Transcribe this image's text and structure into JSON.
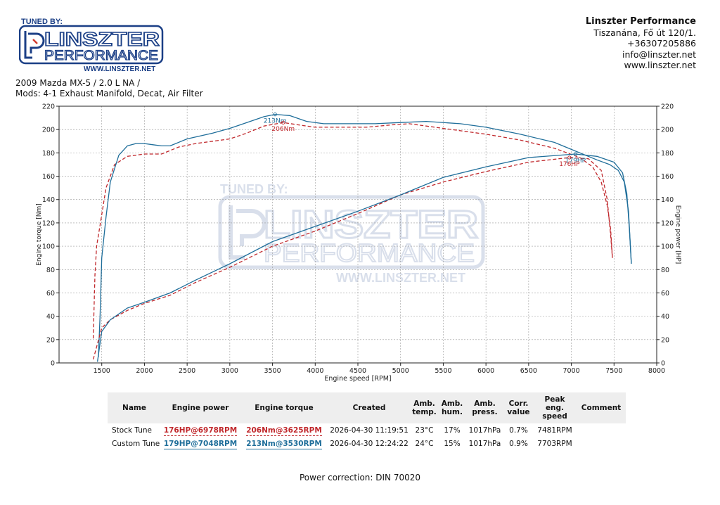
{
  "header": {
    "logo": {
      "tuned_by": "TUNED BY:",
      "line1": "LINSZTER",
      "line2": "PERFORMANCE",
      "url": "WWW.LINSZTER.NET"
    },
    "company": {
      "name": "Linszter Performance",
      "address": "Tiszanána, Fő út 120/1.",
      "phone": "+36307205886",
      "email": "info@linszter.net",
      "website": "www.linszter.net"
    },
    "vehicle": {
      "title": "2009 Mazda MX-5 / 2.0 L NA /",
      "mods": "Mods: 4-1 Exhaust Manifold, Decat, Air Filter"
    }
  },
  "chart_data": {
    "type": "line",
    "xlabel": "Engine speed [RPM]",
    "ylabel_left": "Engine torque [Nm]",
    "ylabel_right": "Engine power [HP]",
    "xlim": [
      1000,
      8000
    ],
    "ylim": [
      0,
      220
    ],
    "x_ticks": [
      1500,
      2000,
      2500,
      3000,
      3500,
      4000,
      4500,
      5000,
      5500,
      6000,
      6500,
      7000,
      7500,
      8000
    ],
    "y_ticks": [
      0,
      20,
      40,
      60,
      80,
      100,
      120,
      140,
      160,
      180,
      200,
      220
    ],
    "grid": true,
    "series": [
      {
        "name": "Stock Tune",
        "kind": "torque",
        "color": "#c0282c",
        "dash": true,
        "x": [
          1400,
          1420,
          1440,
          1480,
          1550,
          1650,
          1800,
          2000,
          2200,
          2400,
          2600,
          2800,
          3000,
          3200,
          3400,
          3625,
          3800,
          4000,
          4300,
          4600,
          4900,
          5100,
          5300,
          5600,
          6000,
          6400,
          6800,
          7100,
          7250,
          7350,
          7420,
          7460,
          7481
        ],
        "y": [
          21,
          75,
          100,
          118,
          150,
          170,
          177,
          179,
          179,
          185,
          188,
          190,
          192,
          197,
          203,
          206,
          204,
          202,
          202,
          202,
          204,
          205,
          203,
          200,
          196,
          191,
          184,
          176,
          168,
          155,
          135,
          115,
          90
        ]
      },
      {
        "name": "Custom Tune",
        "kind": "torque",
        "color": "#1f6e9a",
        "dash": false,
        "x": [
          1460,
          1480,
          1500,
          1550,
          1600,
          1700,
          1800,
          1900,
          2000,
          2100,
          2200,
          2300,
          2500,
          2800,
          3000,
          3200,
          3400,
          3530,
          3700,
          3900,
          4100,
          4400,
          4700,
          5000,
          5300,
          5700,
          6000,
          6400,
          6800,
          7100,
          7300,
          7450,
          7550,
          7620,
          7670,
          7703
        ],
        "y": [
          5,
          40,
          90,
          125,
          155,
          178,
          186,
          188,
          188,
          187,
          186,
          186,
          192,
          197,
          201,
          206,
          211,
          213,
          212,
          207,
          205,
          205,
          205,
          206,
          207,
          205,
          202,
          196,
          189,
          180,
          174,
          170,
          165,
          155,
          130,
          85
        ]
      },
      {
        "name": "Stock Tune",
        "kind": "power",
        "color": "#c0282c",
        "dash": true,
        "x": [
          1400,
          1500,
          1600,
          1800,
          2000,
          2300,
          2600,
          3000,
          3500,
          4000,
          4500,
          5000,
          5500,
          6000,
          6500,
          6978,
          7200,
          7350,
          7420,
          7460,
          7481
        ],
        "y": [
          3,
          30,
          37,
          45,
          51,
          58,
          69,
          82,
          100,
          113,
          128,
          144,
          155,
          164,
          172,
          176,
          175,
          165,
          140,
          110,
          90
        ]
      },
      {
        "name": "Custom Tune",
        "kind": "power",
        "color": "#1f6e9a",
        "dash": false,
        "x": [
          1450,
          1500,
          1600,
          1800,
          2000,
          2300,
          2600,
          3000,
          3500,
          4000,
          4500,
          5000,
          5500,
          6000,
          6500,
          7048,
          7300,
          7500,
          7600,
          7650,
          7680,
          7703
        ],
        "y": [
          1,
          27,
          37,
          47,
          52,
          60,
          71,
          85,
          104,
          117,
          130,
          144,
          159,
          168,
          176,
          179,
          177,
          172,
          163,
          145,
          115,
          85
        ]
      }
    ],
    "annotations": [
      {
        "text": "213Nm",
        "x": 3530,
        "y": 213,
        "color": "#1f6e9a"
      },
      {
        "text": "206Nm",
        "x": 3625,
        "y": 206,
        "color": "#c0282c"
      },
      {
        "text": "179HP",
        "x": 7048,
        "y": 179,
        "color": "#1f6e9a"
      },
      {
        "text": "176HP",
        "x": 6978,
        "y": 176,
        "color": "#c0282c"
      }
    ]
  },
  "table": {
    "headers": [
      "Name",
      "Engine power",
      "Engine torque",
      "Created",
      "Amb.\ntemp.",
      "Amb.\nhum.",
      "Amb.\npress.",
      "Corr.\nvalue",
      "Peak\neng. speed",
      "Comment"
    ],
    "rows": [
      {
        "name": "Stock Tune",
        "power": "176HP@6978RPM",
        "torque": "206Nm@3625RPM",
        "created": "2026-04-30 11:19:51",
        "temp": "23°C",
        "hum": "17%",
        "press": "1017hPa",
        "corr": "0.7%",
        "peak": "7481RPM",
        "comment": "",
        "style": "stock"
      },
      {
        "name": "Custom Tune",
        "power": "179HP@7048RPM",
        "torque": "213Nm@3530RPM",
        "created": "2026-04-30 12:24:22",
        "temp": "24°C",
        "hum": "15%",
        "press": "1017hPa",
        "corr": "0.9%",
        "peak": "7703RPM",
        "comment": "",
        "style": "custom"
      }
    ]
  },
  "footer": {
    "power_correction": "Power correction: DIN 70020"
  }
}
